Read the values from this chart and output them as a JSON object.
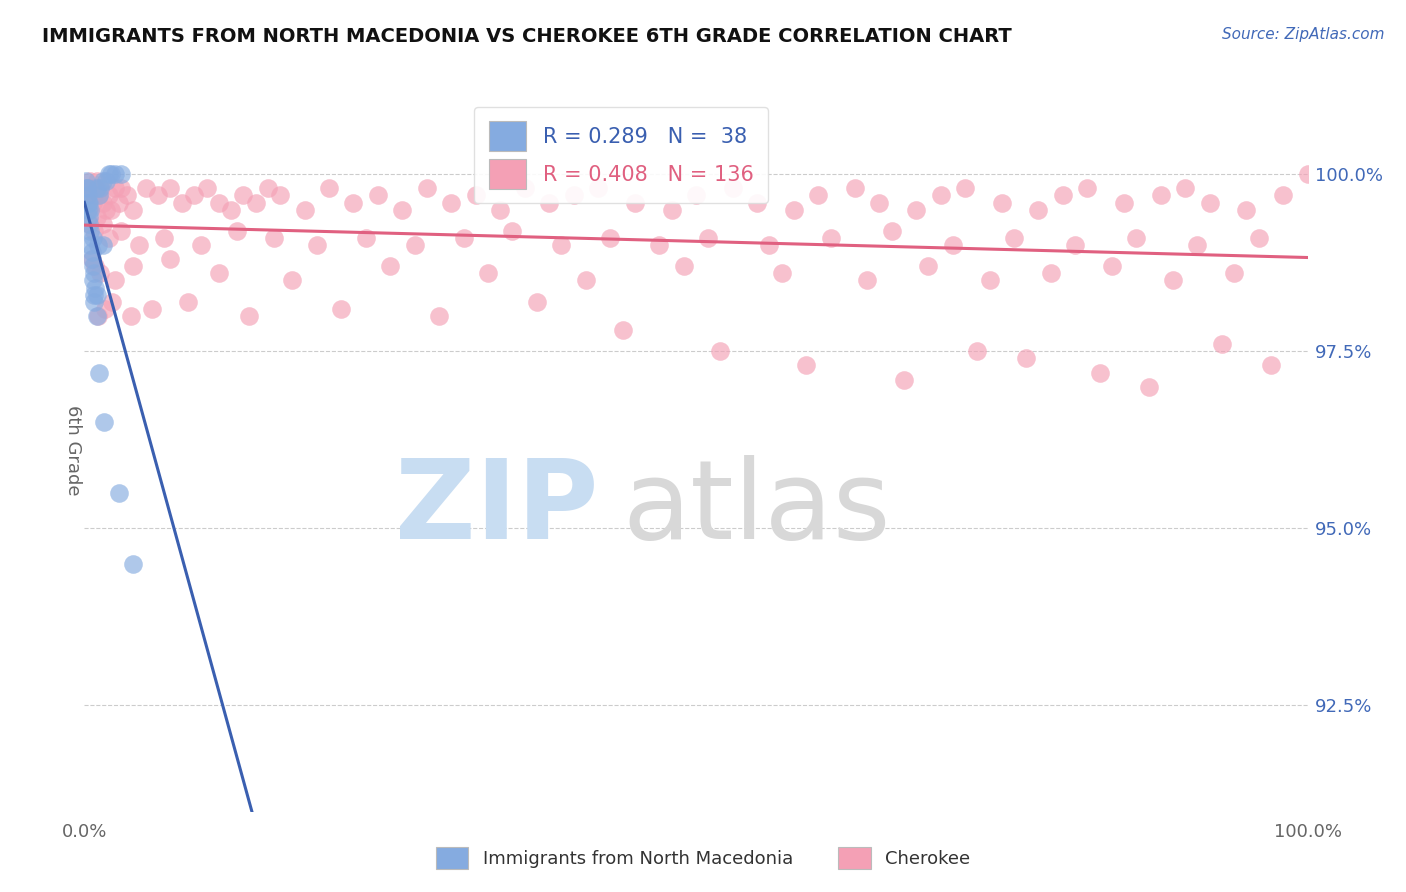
{
  "title": "IMMIGRANTS FROM NORTH MACEDONIA VS CHEROKEE 6TH GRADE CORRELATION CHART",
  "source_text": "Source: ZipAtlas.com",
  "ylabel": "6th Grade",
  "ylabel_right_ticks": [
    92.5,
    95.0,
    97.5,
    100.0
  ],
  "ylabel_right_labels": [
    "92.5%",
    "95.0%",
    "97.5%",
    "100.0%"
  ],
  "x_min": 0.0,
  "x_max": 100.0,
  "y_min": 91.0,
  "y_max": 101.2,
  "blue_R": 0.289,
  "blue_N": 38,
  "pink_R": 0.408,
  "pink_N": 136,
  "blue_color": "#85abe0",
  "pink_color": "#f4a0b5",
  "blue_line_color": "#3a5fb0",
  "pink_line_color": "#e06080",
  "legend_blue_label": "Immigrants from North Macedonia",
  "legend_pink_label": "Cherokee",
  "watermark_color_zip": "#c8ddf2",
  "watermark_color_atlas": "#d8d8d8",
  "blue_x": [
    0.2,
    0.3,
    0.3,
    0.4,
    0.4,
    0.5,
    0.5,
    0.5,
    0.6,
    0.7,
    0.7,
    0.7,
    0.8,
    0.8,
    0.9,
    1.0,
    1.0,
    1.0,
    1.1,
    1.2,
    1.3,
    1.5,
    1.5,
    1.8,
    2.0,
    2.2,
    2.5,
    3.0,
    0.1,
    0.2,
    0.3,
    0.4,
    0.6,
    0.8,
    1.2,
    1.6,
    2.8,
    4.0
  ],
  "blue_y": [
    99.8,
    99.7,
    99.5,
    99.6,
    99.3,
    99.5,
    99.2,
    99.0,
    98.9,
    99.1,
    98.7,
    98.5,
    98.6,
    98.2,
    98.4,
    98.3,
    98.0,
    99.8,
    99.0,
    99.7,
    99.8,
    99.9,
    99.0,
    99.9,
    100.0,
    100.0,
    100.0,
    100.0,
    99.9,
    99.8,
    99.6,
    99.4,
    98.8,
    98.3,
    97.2,
    96.5,
    95.5,
    94.5
  ],
  "pink_x": [
    0.3,
    0.4,
    0.5,
    0.6,
    0.7,
    0.8,
    0.9,
    1.0,
    1.2,
    1.3,
    1.5,
    1.8,
    2.0,
    2.2,
    2.5,
    2.8,
    3.0,
    3.5,
    4.0,
    5.0,
    6.0,
    7.0,
    8.0,
    9.0,
    10.0,
    11.0,
    12.0,
    13.0,
    14.0,
    15.0,
    16.0,
    18.0,
    20.0,
    22.0,
    24.0,
    26.0,
    28.0,
    30.0,
    32.0,
    34.0,
    36.0,
    38.0,
    40.0,
    42.0,
    45.0,
    48.0,
    50.0,
    53.0,
    55.0,
    58.0,
    60.0,
    63.0,
    65.0,
    68.0,
    70.0,
    72.0,
    75.0,
    78.0,
    80.0,
    82.0,
    85.0,
    88.0,
    90.0,
    92.0,
    95.0,
    98.0,
    100.0,
    0.5,
    0.8,
    1.0,
    1.5,
    2.0,
    3.0,
    4.5,
    6.5,
    9.5,
    12.5,
    15.5,
    19.0,
    23.0,
    27.0,
    31.0,
    35.0,
    39.0,
    43.0,
    47.0,
    51.0,
    56.0,
    61.0,
    66.0,
    71.0,
    76.0,
    81.0,
    86.0,
    91.0,
    96.0,
    0.6,
    0.9,
    1.3,
    2.5,
    4.0,
    7.0,
    11.0,
    17.0,
    25.0,
    33.0,
    41.0,
    49.0,
    57.0,
    64.0,
    69.0,
    74.0,
    79.0,
    84.0,
    89.0,
    94.0,
    1.1,
    1.7,
    2.3,
    3.8,
    5.5,
    8.5,
    13.5,
    21.0,
    29.0,
    37.0,
    44.0,
    52.0,
    59.0,
    67.0,
    73.0,
    77.0,
    83.0,
    87.0,
    93.0,
    97.0
  ],
  "pink_y": [
    99.8,
    99.7,
    99.9,
    99.8,
    99.6,
    99.7,
    99.8,
    99.9,
    99.7,
    99.8,
    99.6,
    99.5,
    99.7,
    99.5,
    99.8,
    99.6,
    99.8,
    99.7,
    99.5,
    99.8,
    99.7,
    99.8,
    99.6,
    99.7,
    99.8,
    99.6,
    99.5,
    99.7,
    99.6,
    99.8,
    99.7,
    99.5,
    99.8,
    99.6,
    99.7,
    99.5,
    99.8,
    99.6,
    99.7,
    99.5,
    99.8,
    99.6,
    99.7,
    99.8,
    99.6,
    99.5,
    99.7,
    99.8,
    99.6,
    99.5,
    99.7,
    99.8,
    99.6,
    99.5,
    99.7,
    99.8,
    99.6,
    99.5,
    99.7,
    99.8,
    99.6,
    99.7,
    99.8,
    99.6,
    99.5,
    99.7,
    100.0,
    99.3,
    99.2,
    99.4,
    99.3,
    99.1,
    99.2,
    99.0,
    99.1,
    99.0,
    99.2,
    99.1,
    99.0,
    99.1,
    99.0,
    99.1,
    99.2,
    99.0,
    99.1,
    99.0,
    99.1,
    99.0,
    99.1,
    99.2,
    99.0,
    99.1,
    99.0,
    99.1,
    99.0,
    99.1,
    98.8,
    98.7,
    98.6,
    98.5,
    98.7,
    98.8,
    98.6,
    98.5,
    98.7,
    98.6,
    98.5,
    98.7,
    98.6,
    98.5,
    98.7,
    98.5,
    98.6,
    98.7,
    98.5,
    98.6,
    98.0,
    98.1,
    98.2,
    98.0,
    98.1,
    98.2,
    98.0,
    98.1,
    98.0,
    98.2,
    97.8,
    97.5,
    97.3,
    97.1,
    97.5,
    97.4,
    97.2,
    97.0,
    97.6,
    97.3
  ]
}
